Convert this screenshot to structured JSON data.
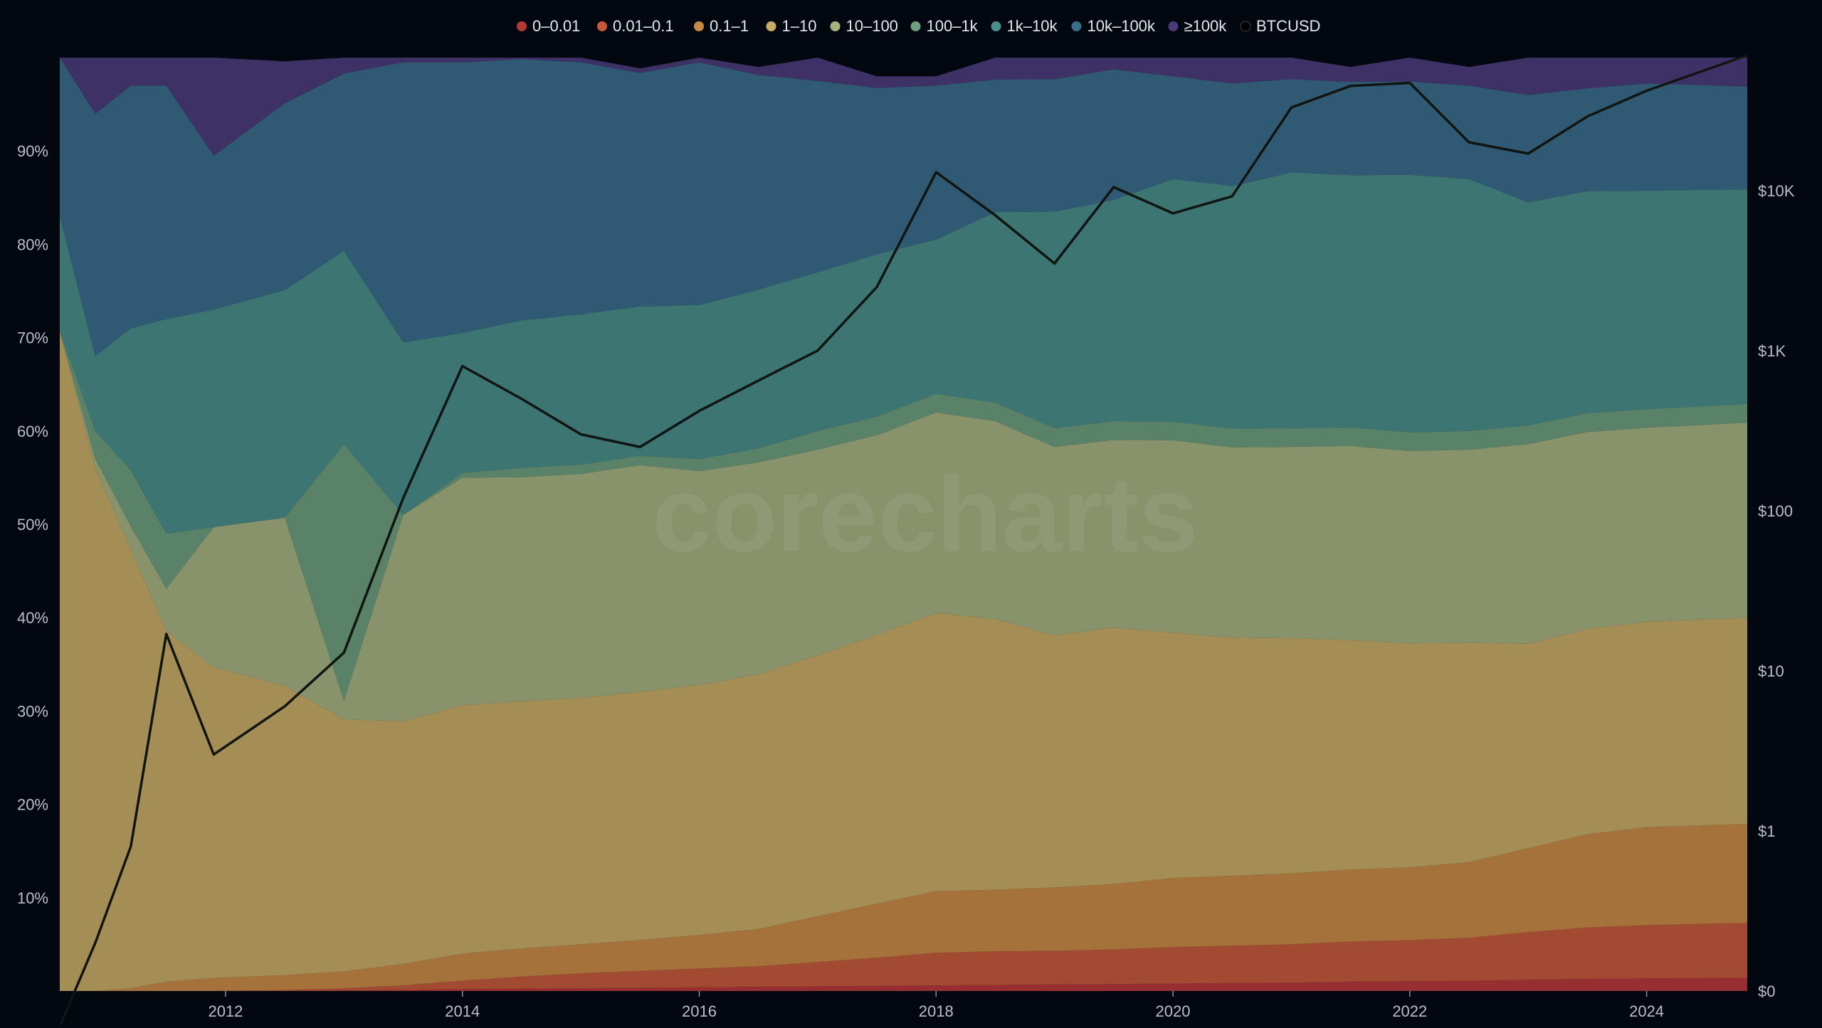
{
  "watermark": "corecharts",
  "chart_data": {
    "type": "area",
    "stacked": true,
    "stack_mode": "percent",
    "x_axis": {
      "type": "time",
      "range": [
        2010.6,
        2024.85
      ],
      "ticks": [
        "2012",
        "2014",
        "2016",
        "2018",
        "2020",
        "2022",
        "2024"
      ]
    },
    "y_axis_left": {
      "range": [
        0,
        100
      ],
      "unit": "%",
      "ticks": [
        "10%",
        "20%",
        "30%",
        "40%",
        "50%",
        "60%",
        "70%",
        "80%",
        "90%"
      ]
    },
    "y_axis_right": {
      "scale": "log",
      "range_log10": [
        -1.0,
        4.83
      ],
      "ticks": [
        "$0",
        "$1",
        "$10",
        "$100",
        "$1K",
        "$10K"
      ]
    },
    "legend": {
      "position": "top-center"
    },
    "x": [
      2010.6,
      2010.9,
      2011.2,
      2011.5,
      2011.9,
      2012.5,
      2013.0,
      2013.5,
      2014.0,
      2014.5,
      2015.0,
      2015.5,
      2016.0,
      2016.5,
      2017.0,
      2017.5,
      2018.0,
      2018.5,
      2019.0,
      2019.5,
      2020.0,
      2020.5,
      2021.0,
      2021.5,
      2022.0,
      2022.5,
      2023.0,
      2023.5,
      2024.0,
      2024.85
    ],
    "series": [
      {
        "name": "0–0.01",
        "color": "#b8383a",
        "values": [
          0,
          0,
          0,
          0,
          0,
          0,
          0.05,
          0.1,
          0.2,
          0.25,
          0.3,
          0.35,
          0.4,
          0.45,
          0.5,
          0.55,
          0.6,
          0.65,
          0.7,
          0.75,
          0.8,
          0.85,
          0.9,
          1.0,
          1.05,
          1.1,
          1.2,
          1.3,
          1.35,
          1.4
        ]
      },
      {
        "name": "0.01–0.1",
        "color": "#c7593a",
        "values": [
          0,
          0,
          0,
          0,
          0,
          0.1,
          0.25,
          0.5,
          0.9,
          1.3,
          1.6,
          1.8,
          2.0,
          2.2,
          2.6,
          3.0,
          3.5,
          3.6,
          3.6,
          3.7,
          3.9,
          4.0,
          4.1,
          4.3,
          4.4,
          4.6,
          5.1,
          5.5,
          5.7,
          5.9
        ]
      },
      {
        "name": "0.1–1",
        "color": "#c98a45",
        "values": [
          0,
          0,
          0.3,
          1.0,
          1.4,
          1.6,
          1.8,
          2.3,
          2.9,
          3.0,
          3.1,
          3.3,
          3.6,
          4.0,
          4.9,
          5.8,
          6.6,
          6.6,
          6.8,
          7.0,
          7.4,
          7.5,
          7.6,
          7.7,
          7.8,
          8.1,
          9.0,
          10.0,
          10.5,
          10.6
        ]
      },
      {
        "name": "1–10",
        "color": "#c9ab67",
        "values": [
          70.7,
          56.0,
          47.0,
          37.6,
          33.3,
          31.0,
          27.0,
          26.0,
          26.6,
          26.5,
          26.4,
          26.6,
          26.8,
          27.3,
          28.0,
          28.8,
          29.8,
          29.0,
          27.0,
          27.5,
          26.3,
          25.5,
          25.2,
          24.6,
          24.0,
          23.5,
          21.9,
          22.0,
          22.0,
          22.1
        ]
      },
      {
        "name": "10–100",
        "color": "#a6b180",
        "values": [
          0,
          1,
          2.5,
          4.5,
          15.0,
          18.0,
          2.0,
          22.1,
          24.4,
          24.0,
          24.0,
          24.3,
          22.9,
          22.7,
          22.0,
          21.4,
          21.5,
          21.2,
          20.2,
          20.1,
          20.6,
          20.4,
          20.5,
          20.8,
          20.6,
          20.7,
          21.4,
          21.1,
          20.8,
          20.9
        ]
      },
      {
        "name": "100–1k",
        "color": "#6e9e7e",
        "values": [
          0,
          3,
          6,
          5.9,
          0,
          0,
          27.5,
          0,
          0.5,
          1.0,
          1.0,
          1.0,
          1.3,
          1.5,
          2.0,
          2.0,
          2.0,
          2.0,
          2.0,
          2.0,
          2.0,
          2.0,
          2.0,
          2.0,
          2.0,
          2.0,
          2.0,
          2.0,
          2.0,
          2.0
        ]
      },
      {
        "name": "1k–10k",
        "color": "#4a8e8a",
        "values": [
          12.3,
          8.0,
          15.2,
          23.0,
          23.3,
          24.4,
          20.7,
          18.5,
          15.0,
          15.8,
          16.1,
          16.0,
          16.5,
          17.0,
          17.0,
          17.4,
          16.5,
          20.4,
          23.2,
          23.7,
          26.0,
          26.0,
          27.4,
          27.0,
          27.6,
          27.0,
          23.9,
          23.8,
          23.4,
          23.0
        ]
      },
      {
        "name": "10k–100k",
        "color": "#3a6d8a",
        "values": [
          17.0,
          26.0,
          26.0,
          25.0,
          16.5,
          20.0,
          19.0,
          30.0,
          29.0,
          28.0,
          27.0,
          25.0,
          26.0,
          23.0,
          20.5,
          17.8,
          16.5,
          14.2,
          14.2,
          14.0,
          11.0,
          11.0,
          10.0,
          10.0,
          10.0,
          10.0,
          11.5,
          11.0,
          11.5,
          11.0
        ]
      },
      {
        "name": "≥100k",
        "color": "#4a3a7a",
        "values": [
          0,
          6,
          3,
          3,
          10.5,
          4.5,
          1.75,
          0.5,
          0.5,
          0.15,
          0.5,
          0.5,
          0.5,
          0.85,
          2.5,
          1.25,
          1.0,
          2.35,
          2.3,
          1.25,
          2.0,
          2.75,
          2.3,
          1.6,
          2.55,
          2.0,
          4.0,
          3.3,
          2.75,
          3.1
        ]
      },
      {
        "name": "BTCUSD",
        "color": "#000000",
        "axis": "right",
        "values": [
          0.06,
          0.2,
          0.8,
          17,
          3,
          6,
          13,
          120,
          800,
          500,
          300,
          250,
          420,
          650,
          1000,
          2500,
          13000,
          7000,
          3500,
          10500,
          7200,
          9200,
          33000,
          45000,
          47000,
          20000,
          17000,
          29000,
          42000,
          70000
        ]
      }
    ]
  }
}
